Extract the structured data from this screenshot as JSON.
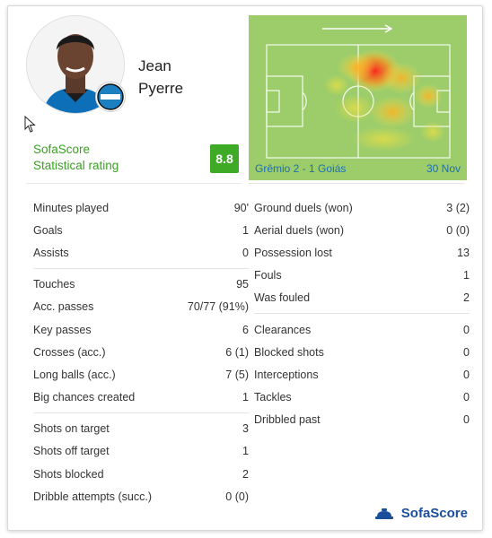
{
  "player": {
    "first_name": "Jean",
    "last_name": "Pyerre"
  },
  "rating": {
    "label_line1": "SofaScore",
    "label_line2": "Statistical rating",
    "value": "8.8",
    "color": "#3eaa25"
  },
  "match": {
    "name": "Grêmio 2 - 1 Goiás",
    "date": "30 Nov"
  },
  "colors": {
    "pitch": "#9ccd6a",
    "link": "#1e6fb0",
    "brand": "#1b4f9c"
  },
  "left_groups": [
    {
      "rows": [
        {
          "label": "Minutes played",
          "value": "90'"
        },
        {
          "label": "Goals",
          "value": "1"
        },
        {
          "label": "Assists",
          "value": "0"
        }
      ]
    },
    {
      "rows": [
        {
          "label": "Touches",
          "value": "95"
        },
        {
          "label": "Acc. passes",
          "value": "70/77 (91%)"
        },
        {
          "label": "Key passes",
          "value": "6"
        },
        {
          "label": "Crosses (acc.)",
          "value": "6 (1)"
        },
        {
          "label": "Long balls (acc.)",
          "value": "7 (5)"
        },
        {
          "label": "Big chances created",
          "value": "1"
        }
      ]
    },
    {
      "rows": [
        {
          "label": "Shots on target",
          "value": "3"
        },
        {
          "label": "Shots off target",
          "value": "1"
        },
        {
          "label": "Shots blocked",
          "value": "2"
        },
        {
          "label": "Dribble attempts (succ.)",
          "value": "0 (0)"
        }
      ]
    }
  ],
  "right_groups": [
    {
      "rows": [
        {
          "label": "Ground duels (won)",
          "value": "3 (2)"
        },
        {
          "label": "Aerial duels (won)",
          "value": "0 (0)"
        },
        {
          "label": "Possession lost",
          "value": "13"
        },
        {
          "label": "Fouls",
          "value": "1"
        },
        {
          "label": "Was fouled",
          "value": "2"
        }
      ]
    },
    {
      "rows": [
        {
          "label": "Clearances",
          "value": "0"
        },
        {
          "label": "Blocked shots",
          "value": "0"
        },
        {
          "label": "Interceptions",
          "value": "0"
        },
        {
          "label": "Tackles",
          "value": "0"
        },
        {
          "label": "Dribbled past",
          "value": "0"
        }
      ]
    }
  ],
  "brand": {
    "name": "SofaScore"
  }
}
